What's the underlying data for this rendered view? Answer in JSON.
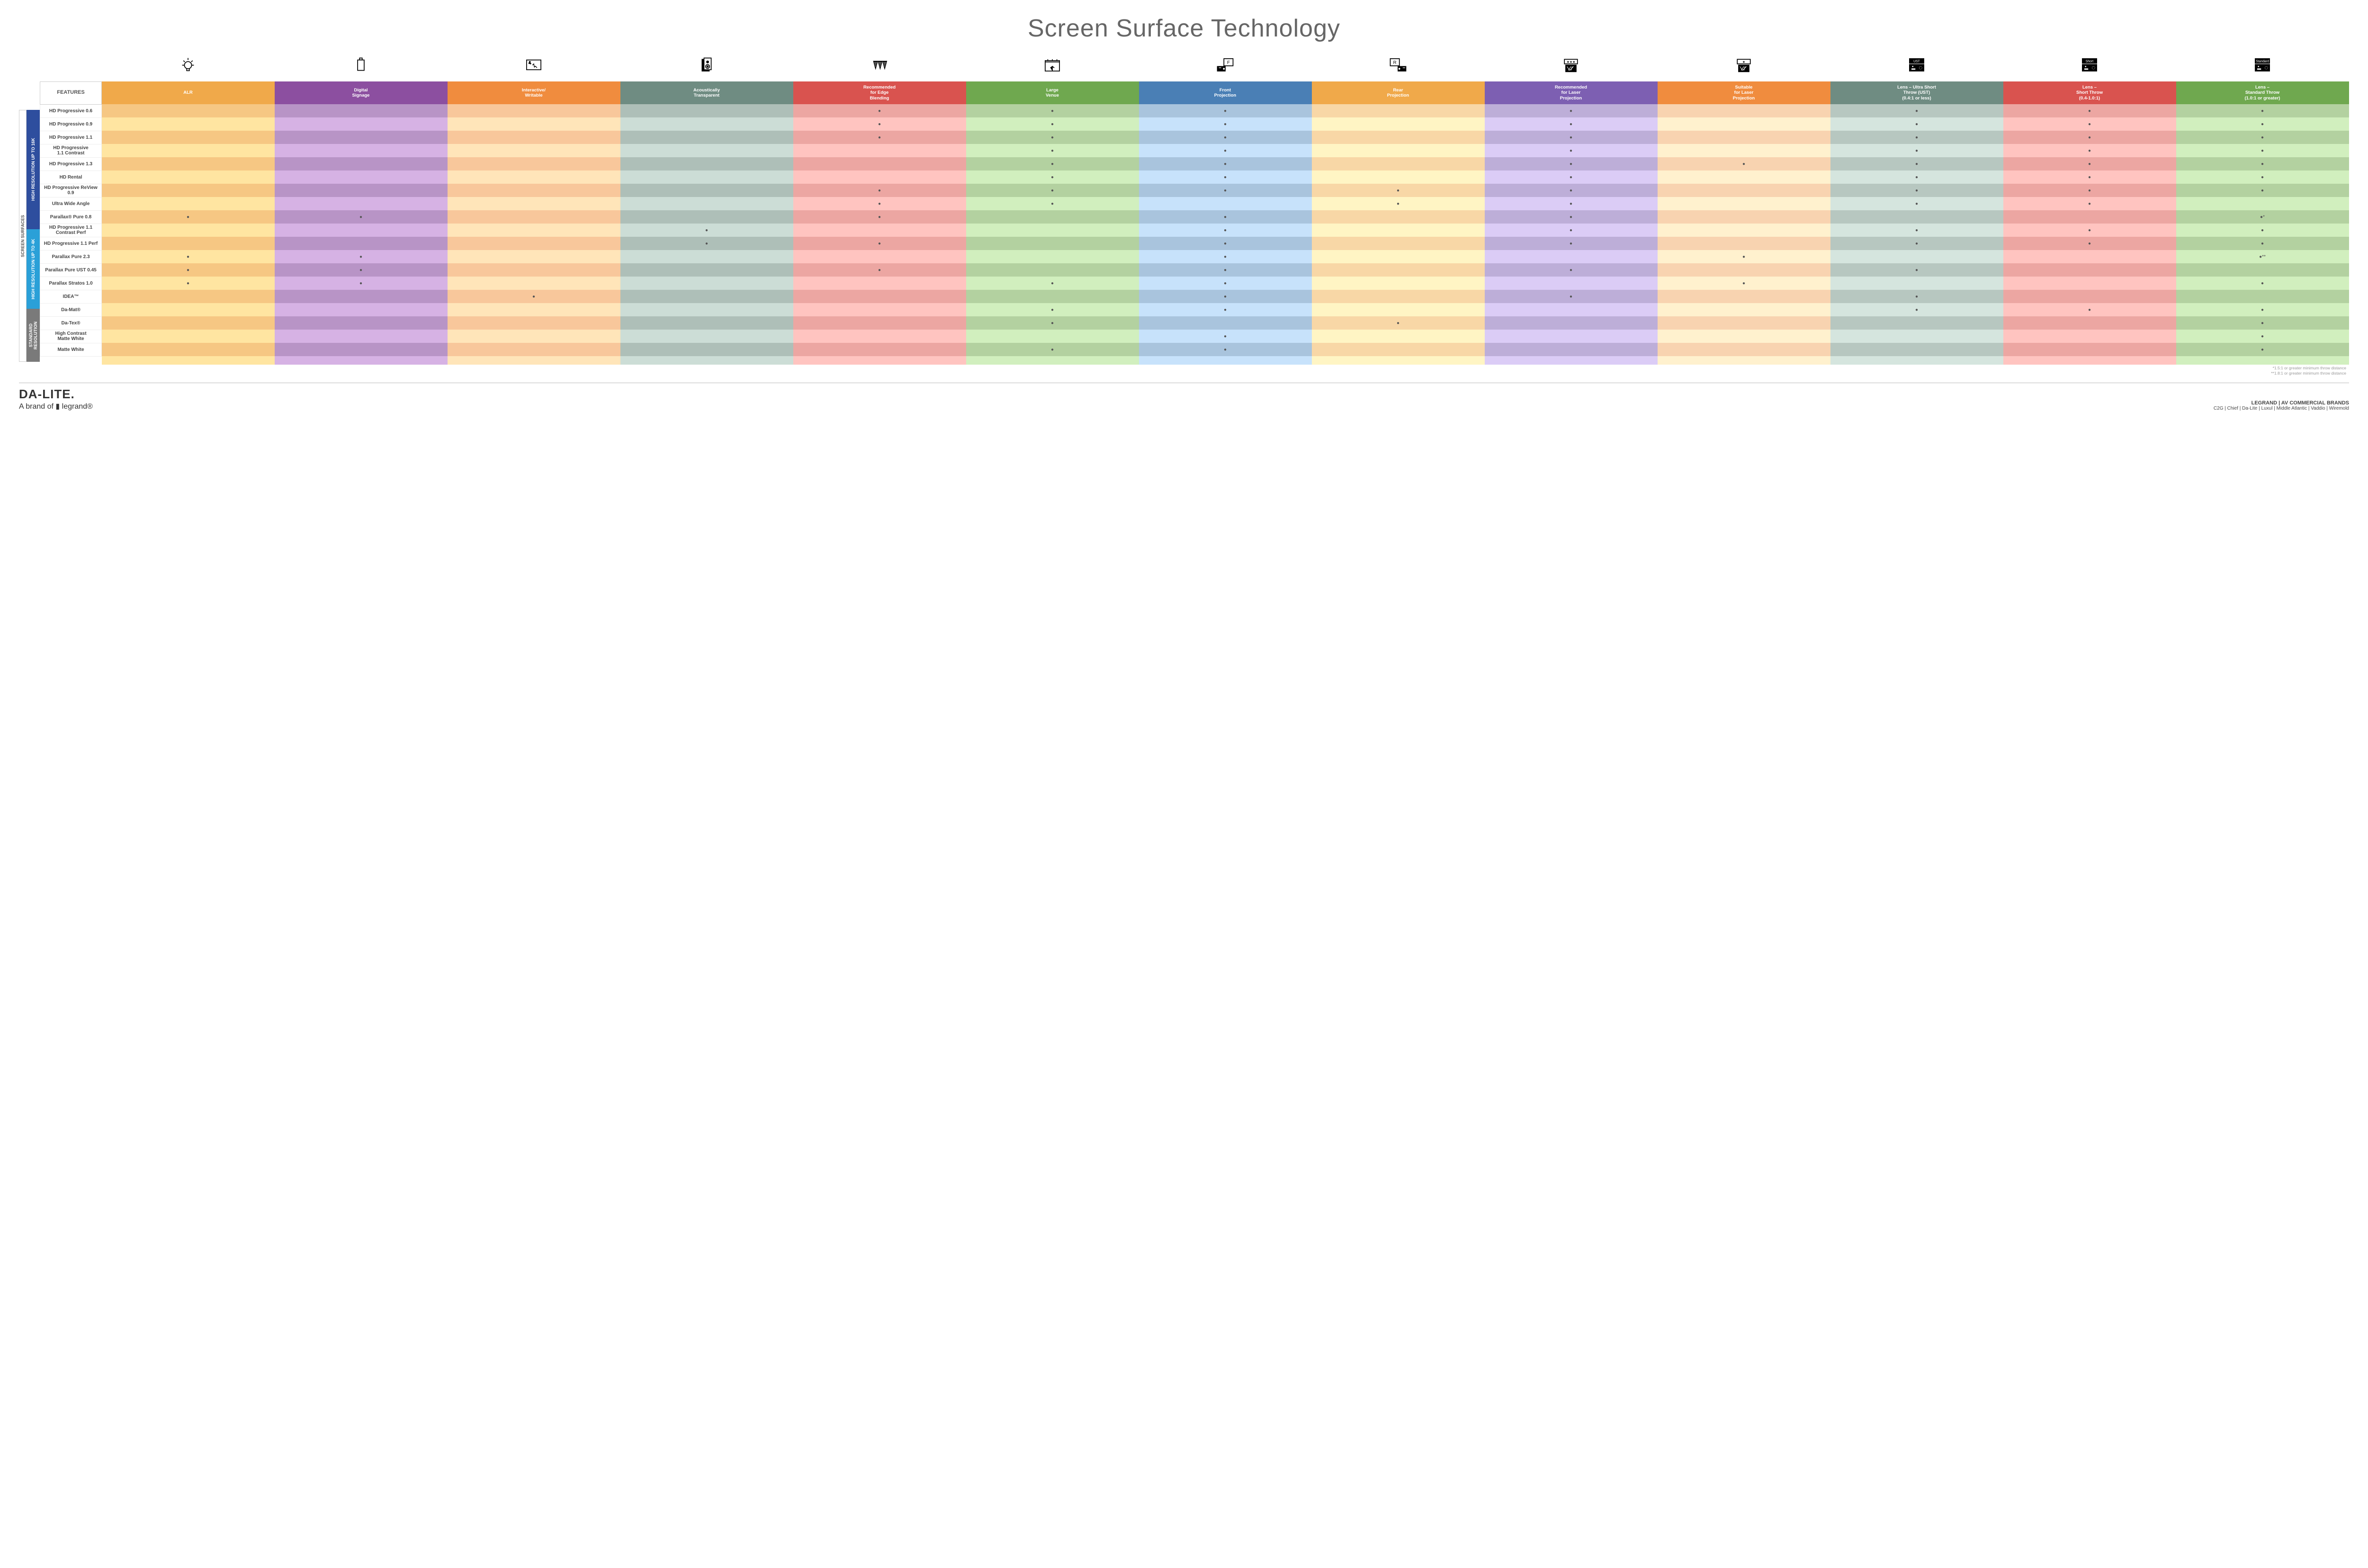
{
  "title": "Screen Surface Technology",
  "columns": [
    {
      "key": "alr",
      "label": "ALR",
      "color": "#f0a94a",
      "alt": "#f6c783"
    },
    {
      "key": "signage",
      "label": "Digital\nSignage",
      "color": "#8c4fa0",
      "alt": "#b894c6"
    },
    {
      "key": "interactive",
      "label": "Interactive/\nWritable",
      "color": "#f08c3e",
      "alt": "#f8c79b"
    },
    {
      "key": "acoustic",
      "label": "Acoustically\nTransparent",
      "color": "#6f8c82",
      "alt": "#aebfb8"
    },
    {
      "key": "edge",
      "label": "Recommended\nfor Edge\nBlending",
      "color": "#d9534f",
      "alt": "#eca6a2"
    },
    {
      "key": "large",
      "label": "Large\nVenue",
      "color": "#6fa84f",
      "alt": "#b3d1a0"
    },
    {
      "key": "front",
      "label": "Front\nProjection",
      "color": "#4a7fb5",
      "alt": "#a9c4dd"
    },
    {
      "key": "rear",
      "label": "Rear\nProjection",
      "color": "#f0a94a",
      "alt": "#f8d7a6"
    },
    {
      "key": "reclaser",
      "label": "Recommended\nfor Laser\nProjection",
      "color": "#7d5fb2",
      "alt": "#bdaed8"
    },
    {
      "key": "suitlaser",
      "label": "Suitable\nfor Laser\nProjection",
      "color": "#f08c3e",
      "alt": "#f8d3b0"
    },
    {
      "key": "ust",
      "label": "Lens – Ultra Short\nThrow (UST)\n(0.4:1 or less)",
      "color": "#6f8c82",
      "alt": "#b7c7c0"
    },
    {
      "key": "short",
      "label": "Lens –\nShort Throw\n(0.4-1.0:1)",
      "color": "#d9534f",
      "alt": "#eca6a2"
    },
    {
      "key": "std",
      "label": "Lens –\nStandard Throw\n(1.0:1 or greater)",
      "color": "#6fa84f",
      "alt": "#b3d1a0"
    }
  ],
  "features_label": "FEATURES",
  "side_outer": "SCREEN SURFACES",
  "groups": [
    {
      "label": "HIGH RESOLUTION UP TO 16K",
      "color": "#2e4e9e",
      "count": 9
    },
    {
      "label": "HIGH RESOLUTION UP TO 4K",
      "color": "#2aa0d8",
      "count": 6
    },
    {
      "label": "STANDARD\nRESOLUTION",
      "color": "#7a7a7a",
      "count": 4
    }
  ],
  "rows": [
    {
      "label": "HD Progressive 0.6",
      "dots": [
        "edge",
        "large",
        "front",
        "reclaser",
        "ust",
        "short",
        "std"
      ]
    },
    {
      "label": "HD Progressive 0.9",
      "dots": [
        "edge",
        "large",
        "front",
        "reclaser",
        "ust",
        "short",
        "std"
      ]
    },
    {
      "label": "HD Progressive 1.1",
      "dots": [
        "edge",
        "large",
        "front",
        "reclaser",
        "ust",
        "short",
        "std"
      ]
    },
    {
      "label": "HD Progressive\n1.1 Contrast",
      "dots": [
        "large",
        "front",
        "reclaser",
        "ust",
        "short",
        "std"
      ]
    },
    {
      "label": "HD Progressive 1.3",
      "dots": [
        "large",
        "front",
        "reclaser",
        "suitlaser",
        "ust",
        "short",
        "std"
      ]
    },
    {
      "label": "HD Rental",
      "dots": [
        "large",
        "front",
        "reclaser",
        "ust",
        "short",
        "std"
      ]
    },
    {
      "label": "HD Progressive ReView 0.9",
      "dots": [
        "edge",
        "large",
        "front",
        "rear",
        "reclaser",
        "ust",
        "short",
        "std"
      ]
    },
    {
      "label": "Ultra Wide Angle",
      "dots": [
        "edge",
        "large",
        "rear",
        "reclaser",
        "ust",
        "short"
      ]
    },
    {
      "label": "Parallax® Pure 0.8",
      "dots": [
        "alr",
        "signage",
        "edge",
        "front",
        "reclaser"
      ],
      "suffix": {
        "std": "●*"
      }
    },
    {
      "label": "HD Progressive 1.1\nContrast Perf",
      "dots": [
        "acoustic",
        "front",
        "reclaser",
        "ust",
        "short",
        "std"
      ]
    },
    {
      "label": "HD Progressive 1.1 Perf",
      "dots": [
        "acoustic",
        "edge",
        "front",
        "reclaser",
        "ust",
        "short",
        "std"
      ]
    },
    {
      "label": "Parallax Pure 2.3",
      "dots": [
        "alr",
        "signage",
        "front",
        "suitlaser"
      ],
      "suffix": {
        "std": "●**"
      }
    },
    {
      "label": "Parallax Pure UST 0.45",
      "dots": [
        "alr",
        "signage",
        "edge",
        "front",
        "reclaser",
        "ust"
      ]
    },
    {
      "label": "Parallax Stratos 1.0",
      "dots": [
        "alr",
        "signage",
        "large",
        "front",
        "suitlaser",
        "std"
      ]
    },
    {
      "label": "IDEA™",
      "dots": [
        "interactive",
        "front",
        "reclaser",
        "ust"
      ]
    },
    {
      "label": "Da-Mat®",
      "dots": [
        "large",
        "front",
        "ust",
        "short",
        "std"
      ]
    },
    {
      "label": "Da-Tex®",
      "dots": [
        "large",
        "rear",
        "std"
      ]
    },
    {
      "label": "High Contrast\nMatte White",
      "dots": [
        "front",
        "std"
      ]
    },
    {
      "label": "Matte White",
      "dots": [
        "large",
        "front",
        "std"
      ]
    }
  ],
  "footnotes": [
    "*1.5:1 or greater minimum throw distance",
    "**1.8:1 or greater minimum throw distance"
  ],
  "footer": {
    "logo": "DA-LITE.",
    "logo_sub": "A brand of ▮ legrand®",
    "brands_title": "LEGRAND | AV COMMERCIAL BRANDS",
    "brands_list": "C2G  |  Chief  |  Da-Lite  |  Luxul  |  Middle Atlantic  |  Vaddio  |  Wiremold"
  },
  "icons": {
    "alr": "bulb",
    "signage": "signage",
    "interactive": "touch",
    "acoustic": "speaker",
    "edge": "triangles",
    "large": "venue",
    "front": "front",
    "rear": "rear",
    "reclaser": "laser3",
    "suitlaser": "laser1",
    "ust": "proj:UST",
    "short": "proj:Short",
    "std": "proj:Standard"
  }
}
